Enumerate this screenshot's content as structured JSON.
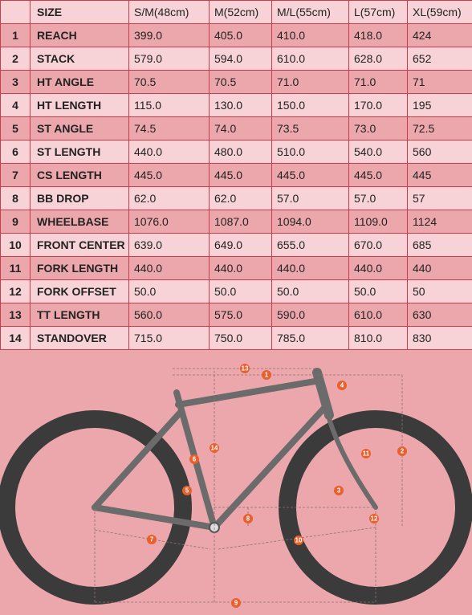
{
  "table": {
    "header": [
      "SIZE",
      "S/M(48cm)",
      "M(52cm)",
      "M/L(55cm)",
      "L(57cm)",
      "XL(59cm)"
    ],
    "rows": [
      [
        "1",
        "REACH",
        "399.0",
        "405.0",
        "410.0",
        "418.0",
        "424"
      ],
      [
        "2",
        "STACK",
        "579.0",
        "594.0",
        "610.0",
        "628.0",
        "652"
      ],
      [
        "3",
        "HT ANGLE",
        "70.5",
        "70.5",
        "71.0",
        "71.0",
        "71"
      ],
      [
        "4",
        "HT LENGTH",
        "115.0",
        "130.0",
        "150.0",
        "170.0",
        "195"
      ],
      [
        "5",
        "ST ANGLE",
        "74.5",
        "74.0",
        "73.5",
        "73.0",
        "72.5"
      ],
      [
        "6",
        "ST LENGTH",
        "440.0",
        "480.0",
        "510.0",
        "540.0",
        "560"
      ],
      [
        "7",
        "CS LENGTH",
        "445.0",
        "445.0",
        "445.0",
        "445.0",
        "445"
      ],
      [
        "8",
        "BB DROP",
        "62.0",
        "62.0",
        "57.0",
        "57.0",
        "57"
      ],
      [
        "9",
        "WHEELBASE",
        "1076.0",
        "1087.0",
        "1094.0",
        "1109.0",
        "1124"
      ],
      [
        "10",
        "FRONT CENTER",
        "639.0",
        "649.0",
        "655.0",
        "670.0",
        "685"
      ],
      [
        "11",
        "FORK LENGTH",
        "440.0",
        "440.0",
        "440.0",
        "440.0",
        "440"
      ],
      [
        "12",
        "FORK OFFSET",
        "50.0",
        "50.0",
        "50.0",
        "50.0",
        "50"
      ],
      [
        "13",
        "TT LENGTH",
        "560.0",
        "575.0",
        "590.0",
        "610.0",
        "630"
      ],
      [
        "14",
        "STANDOVER",
        "715.0",
        "750.0",
        "785.0",
        "810.0",
        "830"
      ]
    ]
  }
}
